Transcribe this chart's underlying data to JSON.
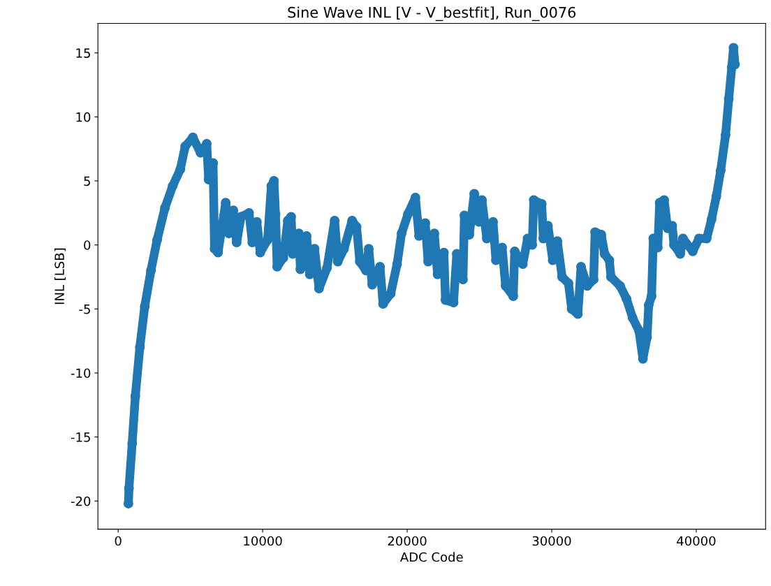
{
  "chart_data": {
    "type": "line",
    "title": "Sine Wave INL [V - V_bestfit], Run_0076",
    "xlabel": "ADC Code",
    "ylabel": "INL [LSB]",
    "xlim": [
      -1400,
      44800
    ],
    "ylim": [
      -22.2,
      17.3
    ],
    "xticks": [
      0,
      10000,
      20000,
      30000,
      40000
    ],
    "yticks": [
      -20,
      -15,
      -10,
      -5,
      0,
      5,
      10,
      15
    ],
    "grid": false,
    "marker": "circle",
    "line_style": "solid",
    "series": [
      {
        "color": "#1f77b4",
        "x": [
          710,
          750,
          970,
          1190,
          1500,
          1840,
          2270,
          2700,
          3240,
          3770,
          4300,
          4640,
          5170,
          5700,
          6130,
          6260,
          6570,
          6670,
          6910,
          7440,
          7660,
          7970,
          8200,
          8500,
          9060,
          9280,
          9600,
          9830,
          10340,
          10600,
          10780,
          10890,
          11000,
          11430,
          11740,
          11970,
          12080,
          12510,
          12610,
          13040,
          13260,
          13590,
          13900,
          14450,
          14980,
          15200,
          15630,
          16190,
          16500,
          16720,
          17150,
          17340,
          17580,
          18120,
          18330,
          18860,
          19300,
          19610,
          20050,
          20570,
          20820,
          21250,
          21450,
          21880,
          22100,
          22540,
          22650,
          23210,
          23430,
          23860,
          23960,
          24300,
          24640,
          24960,
          25170,
          25510,
          25940,
          26140,
          26570,
          26810,
          27340,
          27440,
          28000,
          28330,
          28650,
          28760,
          29310,
          29420,
          29740,
          30070,
          30390,
          30720,
          31160,
          31380,
          31810,
          32030,
          32460,
          32900,
          33000,
          33430,
          33660,
          33990,
          34100,
          34730,
          35170,
          35600,
          36040,
          36310,
          36600,
          36710,
          36910,
          37030,
          37340,
          37470,
          37780,
          38020,
          38340,
          38460,
          38890,
          39080,
          39760,
          40190,
          40720,
          41060,
          41390,
          41690,
          42030,
          42250,
          42460,
          42580,
          42680
        ],
        "values": [
          -20.2,
          -19.0,
          -15.5,
          -11.8,
          -8.0,
          -4.8,
          -2.0,
          0.4,
          2.9,
          4.6,
          5.9,
          7.7,
          8.4,
          7.2,
          7.9,
          5.1,
          6.4,
          -0.3,
          -0.6,
          3.3,
          0.9,
          2.7,
          0.2,
          2.2,
          2.5,
          0.2,
          1.8,
          -0.6,
          0.4,
          4.6,
          5.0,
          2.4,
          -1.7,
          -1.0,
          1.9,
          2.2,
          -0.7,
          0.9,
          -1.9,
          0.7,
          -2.3,
          -0.3,
          -3.4,
          -1.8,
          1.9,
          -1.3,
          -0.3,
          1.9,
          1.4,
          -1.3,
          -2.0,
          -0.3,
          -3.1,
          -1.7,
          -4.6,
          -3.8,
          -1.5,
          0.9,
          2.4,
          3.7,
          0.7,
          1.7,
          -1.3,
          0.9,
          -2.3,
          -0.6,
          -4.3,
          -4.5,
          -0.7,
          -2.7,
          2.3,
          0.8,
          4.0,
          1.8,
          3.5,
          0.5,
          1.8,
          -1.2,
          -0.2,
          -3.2,
          -4.0,
          -0.5,
          -1.5,
          0.5,
          0.0,
          3.5,
          3.2,
          0.5,
          1.5,
          -1.2,
          0.3,
          -2.5,
          -3.0,
          -5.0,
          -5.4,
          -1.7,
          -3.2,
          -2.7,
          1.0,
          0.8,
          -0.7,
          -1.2,
          -2.5,
          -3.2,
          -4.2,
          -5.7,
          -6.7,
          -8.9,
          -7.2,
          -4.7,
          -4.0,
          0.5,
          -0.2,
          3.3,
          3.5,
          1.3,
          1.5,
          0.0,
          -0.7,
          0.5,
          -0.5,
          0.5,
          0.5,
          2.0,
          3.8,
          5.8,
          8.6,
          11.4,
          13.9,
          15.4,
          14.1
        ]
      }
    ]
  }
}
